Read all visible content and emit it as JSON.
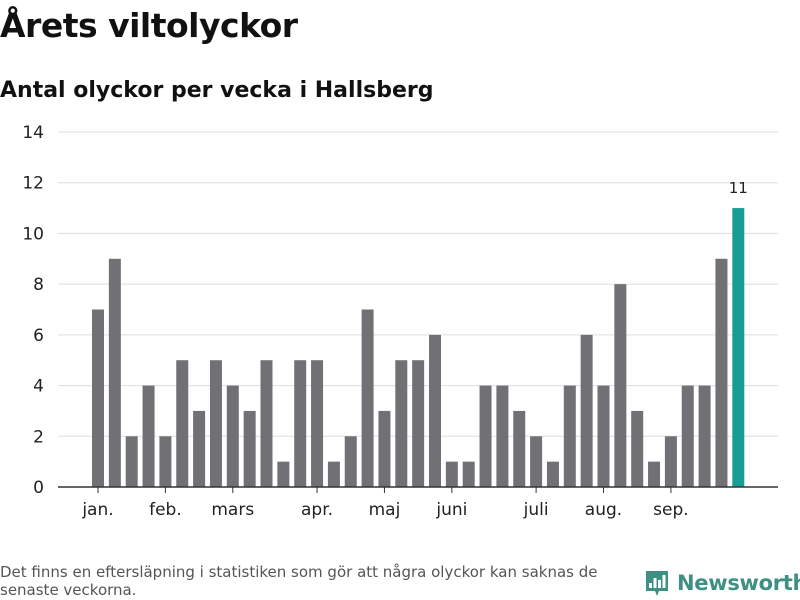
{
  "header": {
    "title": "Årets viltolyckor",
    "subtitle": "Antal olyckor per vecka i Hallsberg"
  },
  "chart_data": {
    "type": "bar",
    "title": "Årets viltolyckor",
    "subtitle": "Antal olyckor per vecka i Hallsberg",
    "xlabel": "",
    "ylabel": "",
    "ylim": [
      0,
      14
    ],
    "yticks": [
      0,
      2,
      4,
      6,
      8,
      10,
      12,
      14
    ],
    "grid": true,
    "x_month_labels": [
      {
        "label": "jan.",
        "at_week": 1
      },
      {
        "label": "feb.",
        "at_week": 5
      },
      {
        "label": "mars",
        "at_week": 9
      },
      {
        "label": "apr.",
        "at_week": 14
      },
      {
        "label": "maj",
        "at_week": 18
      },
      {
        "label": "juni",
        "at_week": 22
      },
      {
        "label": "juli",
        "at_week": 27
      },
      {
        "label": "aug.",
        "at_week": 31
      },
      {
        "label": "sep.",
        "at_week": 35
      }
    ],
    "values": [
      7,
      9,
      2,
      4,
      2,
      5,
      3,
      5,
      4,
      3,
      5,
      1,
      5,
      5,
      1,
      2,
      7,
      3,
      5,
      5,
      6,
      1,
      1,
      4,
      4,
      3,
      2,
      1,
      4,
      6,
      4,
      8,
      3,
      1,
      2,
      4,
      4,
      9,
      11
    ],
    "highlight_index": 38,
    "highlight_label": "11",
    "colors": {
      "bar": "#717075",
      "highlight": "#169e93",
      "grid": "#dddddd",
      "axis": "#333333"
    }
  },
  "footer": {
    "note": "Det finns en eftersläpning i statistiken som gör att några olyckor kan saknas de senaste veckorna.",
    "brand": "Newsworthy",
    "brand_icon": "newsworthy-logo-icon",
    "brand_color": "#3e8f84"
  }
}
